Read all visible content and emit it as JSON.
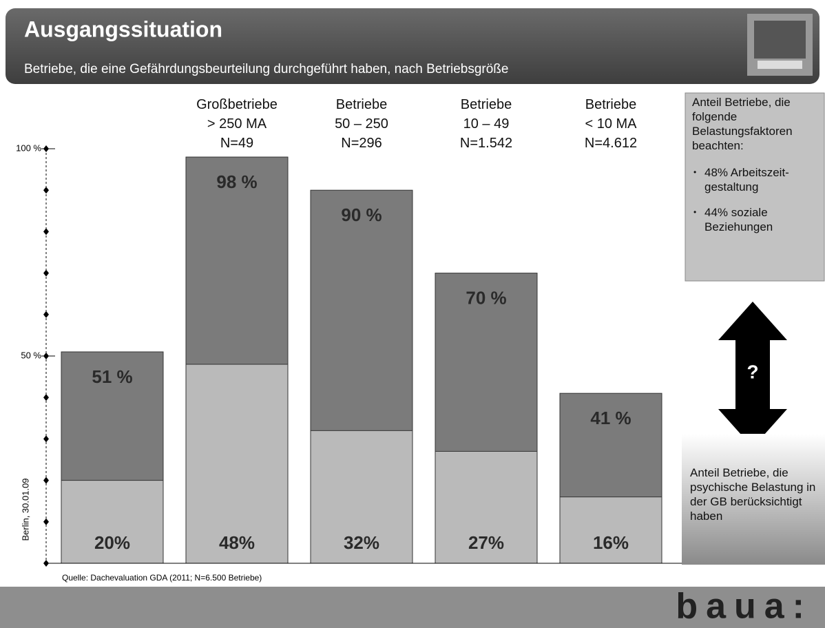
{
  "slide": {
    "title": "Ausgangssituation",
    "subtitle": "Betriebe, die eine Gefährdungsbeurteilung durchgeführt haben, nach Betriebsgröße",
    "info_box": {
      "heading": "Anteil Betriebe, die folgende Belastungsfaktoren beachten:",
      "bullets": [
        "48% Arbeitszeit-gestaltung",
        "44% soziale Beziehungen"
      ]
    },
    "question": "?",
    "bottom_note": "Anteil Betriebe, die psychische Belastung in der GB berücksichtigt haben",
    "source": "Quelle: Dachevaluation GDA (2011; N=6.500 Betriebe)",
    "date": "Berlin, 30.01.09",
    "logo": "baua:"
  },
  "chart_data": {
    "type": "bar",
    "categories": [
      null,
      "Großbetriebe\n> 250 MA\nN=49",
      "Betriebe\n50 – 250\nN=296",
      "Betriebe\n10 – 49\nN=1.542",
      "Betriebe\n< 10 MA\nN=4.612"
    ],
    "series": [
      {
        "color": "#7b7b7b",
        "values": [
          51,
          98,
          90,
          70,
          41
        ],
        "value_labels": [
          "51 %",
          "98 %",
          "90 %",
          "70 %",
          "41 %"
        ]
      },
      {
        "color": "#bababa",
        "values": [
          20,
          48,
          32,
          27,
          16
        ],
        "value_labels": [
          "20%",
          "48%",
          "32%",
          "27%",
          "16%"
        ]
      }
    ],
    "ylim": [
      0,
      100
    ],
    "yticks": [
      {
        "value": 50,
        "label": "50 %"
      },
      {
        "value": 100,
        "label": "100 %"
      }
    ],
    "ytick_marks": [
      0,
      10,
      20,
      30,
      40,
      50,
      60,
      70,
      80,
      90,
      100
    ]
  }
}
